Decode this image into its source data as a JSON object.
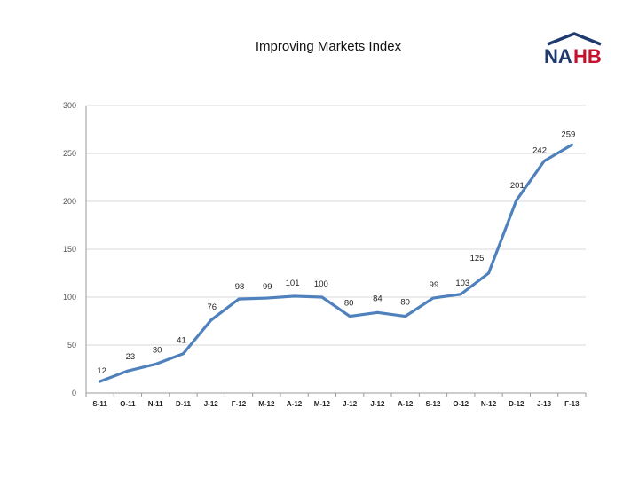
{
  "chart_data": {
    "type": "line",
    "title": "Improving Markets Index",
    "xlabel": "",
    "ylabel": "",
    "categories": [
      "S-11",
      "O-11",
      "N-11",
      "D-11",
      "J-12",
      "F-12",
      "M-12",
      "A-12",
      "M-12",
      "J-12",
      "J-12",
      "A-12",
      "S-12",
      "O-12",
      "N-12",
      "D-12",
      "J-13",
      "F-13"
    ],
    "series": [
      {
        "values": [
          12,
          23,
          30,
          41,
          76,
          98,
          99,
          101,
          100,
          80,
          84,
          80,
          99,
          103,
          125,
          201,
          242,
          259
        ],
        "color": "#4f81bd"
      }
    ],
    "ylim": [
      0,
      300
    ],
    "yticks": [
      0,
      50,
      100,
      150,
      200,
      250,
      300
    ],
    "grid": "horizontal",
    "legend": "none"
  },
  "logo": {
    "text_na": "NA",
    "text_hb": "HB",
    "color_navy": "#1f3a6e",
    "color_red": "#c8102e"
  }
}
